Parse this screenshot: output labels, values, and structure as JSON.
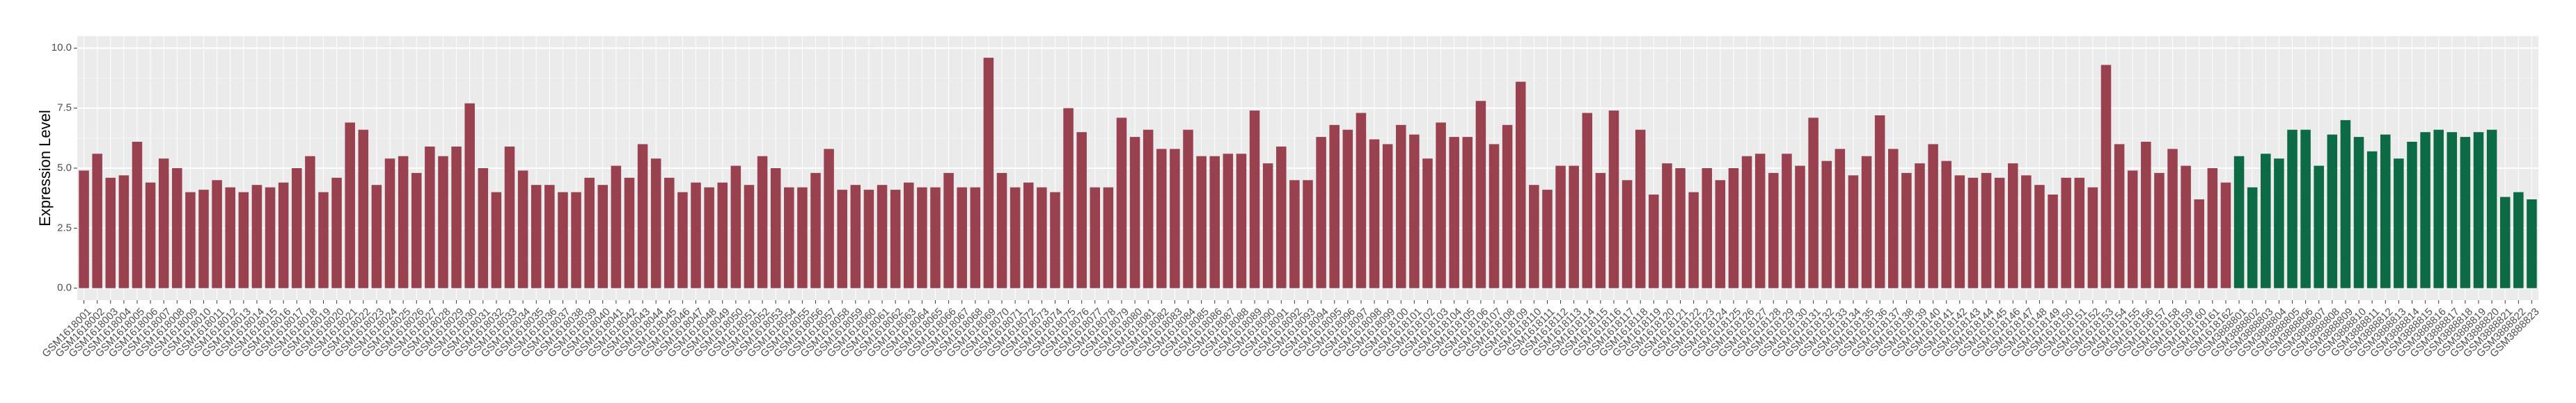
{
  "chart_data": {
    "type": "bar",
    "y_label": "Expression Level",
    "categories": [
      "GSM1618001",
      "GSM1618002",
      "GSM1618003",
      "GSM1618004",
      "GSM1618005",
      "GSM1618006",
      "GSM1618007",
      "GSM1618008",
      "GSM1618009",
      "GSM1618010",
      "GSM1618011",
      "GSM1618012",
      "GSM1618013",
      "GSM1618014",
      "GSM1618015",
      "GSM1618016",
      "GSM1618017",
      "GSM1618018",
      "GSM1618019",
      "GSM1618020",
      "GSM1618021",
      "GSM1618022",
      "GSM1618023",
      "GSM1618024",
      "GSM1618025",
      "GSM1618026",
      "GSM1618027",
      "GSM1618028",
      "GSM1618029",
      "GSM1618030",
      "GSM1618031",
      "GSM1618032",
      "GSM1618033",
      "GSM1618034",
      "GSM1618035",
      "GSM1618036",
      "GSM1618037",
      "GSM1618038",
      "GSM1618039",
      "GSM1618040",
      "GSM1618041",
      "GSM1618042",
      "GSM1618043",
      "GSM1618044",
      "GSM1618045",
      "GSM1618046",
      "GSM1618047",
      "GSM1618048",
      "GSM1618049",
      "GSM1618050",
      "GSM1618051",
      "GSM1618052",
      "GSM1618053",
      "GSM1618054",
      "GSM1618055",
      "GSM1618056",
      "GSM1618057",
      "GSM1618058",
      "GSM1618059",
      "GSM1618060",
      "GSM1618061",
      "GSM1618062",
      "GSM1618063",
      "GSM1618064",
      "GSM1618065",
      "GSM1618066",
      "GSM1618067",
      "GSM1618068",
      "GSM1618069",
      "GSM1618070",
      "GSM1618071",
      "GSM1618072",
      "GSM1618073",
      "GSM1618074",
      "GSM1618075",
      "GSM1618076",
      "GSM1618077",
      "GSM1618078",
      "GSM1618079",
      "GSM1618080",
      "GSM1618081",
      "GSM1618082",
      "GSM1618083",
      "GSM1618084",
      "GSM1618085",
      "GSM1618086",
      "GSM1618087",
      "GSM1618088",
      "GSM1618089",
      "GSM1618090",
      "GSM1618091",
      "GSM1618092",
      "GSM1618093",
      "GSM1618094",
      "GSM1618095",
      "GSM1618096",
      "GSM1618097",
      "GSM1618098",
      "GSM1618099",
      "GSM1618100",
      "GSM1618101",
      "GSM1618102",
      "GSM1618103",
      "GSM1618104",
      "GSM1618105",
      "GSM1618106",
      "GSM1618107",
      "GSM1618108",
      "GSM1618109",
      "GSM1618110",
      "GSM1618111",
      "GSM1618112",
      "GSM1618113",
      "GSM1618114",
      "GSM1618115",
      "GSM1618116",
      "GSM1618117",
      "GSM1618118",
      "GSM1618119",
      "GSM1618120",
      "GSM1618121",
      "GSM1618122",
      "GSM1618123",
      "GSM1618124",
      "GSM1618125",
      "GSM1618126",
      "GSM1618127",
      "GSM1618128",
      "GSM1618129",
      "GSM1618130",
      "GSM1618131",
      "GSM1618132",
      "GSM1618133",
      "GSM1618134",
      "GSM1618135",
      "GSM1618136",
      "GSM1618137",
      "GSM1618138",
      "GSM1618139",
      "GSM1618140",
      "GSM1618141",
      "GSM1618142",
      "GSM1618143",
      "GSM1618144",
      "GSM1618145",
      "GSM1618146",
      "GSM1618147",
      "GSM1618148",
      "GSM1618149",
      "GSM1618150",
      "GSM1618151",
      "GSM1618152",
      "GSM1618153",
      "GSM1618154",
      "GSM1618155",
      "GSM1618156",
      "GSM1618157",
      "GSM1618158",
      "GSM1618159",
      "GSM1618160",
      "GSM1618161",
      "GSM1618162",
      "GSM3888801",
      "GSM3888802",
      "GSM3888803",
      "GSM3888804",
      "GSM3888805",
      "GSM3888806",
      "GSM3888807",
      "GSM3888808",
      "GSM3888809",
      "GSM3888810",
      "GSM3888811",
      "GSM3888812",
      "GSM3888813",
      "GSM3888814",
      "GSM3888815",
      "GSM3888816",
      "GSM3888817",
      "GSM3888818",
      "GSM3888819",
      "GSM3888820",
      "GSM3888821",
      "GSM3888822",
      "GSM3888823"
    ],
    "values": [
      4.9,
      5.6,
      4.6,
      4.7,
      6.1,
      4.4,
      5.4,
      5.0,
      4.0,
      4.1,
      4.5,
      4.2,
      4.0,
      4.3,
      4.2,
      4.4,
      5.0,
      5.5,
      4.0,
      4.6,
      6.9,
      6.6,
      4.3,
      5.4,
      5.5,
      4.8,
      5.9,
      5.5,
      5.9,
      7.7,
      5.0,
      4.0,
      5.9,
      4.9,
      4.3,
      4.3,
      4.0,
      4.0,
      4.6,
      4.3,
      5.1,
      4.6,
      6.0,
      5.4,
      4.6,
      4.0,
      4.4,
      4.2,
      4.4,
      5.1,
      4.3,
      5.5,
      5.0,
      4.2,
      4.2,
      4.8,
      5.8,
      4.1,
      4.3,
      4.1,
      4.3,
      4.1,
      4.4,
      4.2,
      4.2,
      4.8,
      4.2,
      4.2,
      9.6,
      4.8,
      4.2,
      4.4,
      4.2,
      4.0,
      7.5,
      6.5,
      4.2,
      4.2,
      7.1,
      6.3,
      6.6,
      5.8,
      5.8,
      6.6,
      5.5,
      5.5,
      5.6,
      5.6,
      7.4,
      5.2,
      5.9,
      4.5,
      4.5,
      6.3,
      6.8,
      6.6,
      7.3,
      6.2,
      6.0,
      6.8,
      6.4,
      5.4,
      6.9,
      6.3,
      6.3,
      7.8,
      6.0,
      6.8,
      8.6,
      4.3,
      4.1,
      5.1,
      5.1,
      7.3,
      4.8,
      7.4,
      4.5,
      6.6,
      3.9,
      5.2,
      5.0,
      4.0,
      5.0,
      4.5,
      5.0,
      5.5,
      5.6,
      4.8,
      5.6,
      5.1,
      7.1,
      5.3,
      5.8,
      4.7,
      5.5,
      7.2,
      5.8,
      4.8,
      5.2,
      6.0,
      5.3,
      4.7,
      4.6,
      4.8,
      4.6,
      5.2,
      4.7,
      4.3,
      3.9,
      4.6,
      4.6,
      4.2,
      9.3,
      6.0,
      4.9,
      6.1,
      4.8,
      5.8,
      5.1,
      3.7,
      5.0,
      4.4,
      5.5,
      4.2,
      5.6,
      5.4,
      6.6,
      6.6,
      5.1,
      6.4,
      7.0,
      6.3,
      5.7,
      6.4,
      5.4,
      6.1,
      6.5,
      6.6,
      6.5,
      6.3,
      6.5,
      6.6,
      3.8,
      4.0,
      3.7
    ],
    "colors": [
      "#9a4150",
      "#9a4150",
      "#9a4150",
      "#9a4150",
      "#9a4150",
      "#9a4150",
      "#9a4150",
      "#9a4150",
      "#9a4150",
      "#9a4150",
      "#9a4150",
      "#9a4150",
      "#9a4150",
      "#9a4150",
      "#9a4150",
      "#9a4150",
      "#9a4150",
      "#9a4150",
      "#9a4150",
      "#9a4150",
      "#9a4150",
      "#9a4150",
      "#9a4150",
      "#9a4150",
      "#9a4150",
      "#9a4150",
      "#9a4150",
      "#9a4150",
      "#9a4150",
      "#9a4150",
      "#9a4150",
      "#9a4150",
      "#9a4150",
      "#9a4150",
      "#9a4150",
      "#9a4150",
      "#9a4150",
      "#9a4150",
      "#9a4150",
      "#9a4150",
      "#9a4150",
      "#9a4150",
      "#9a4150",
      "#9a4150",
      "#9a4150",
      "#9a4150",
      "#9a4150",
      "#9a4150",
      "#9a4150",
      "#9a4150",
      "#9a4150",
      "#9a4150",
      "#9a4150",
      "#9a4150",
      "#9a4150",
      "#9a4150",
      "#9a4150",
      "#9a4150",
      "#9a4150",
      "#9a4150",
      "#9a4150",
      "#9a4150",
      "#9a4150",
      "#9a4150",
      "#9a4150",
      "#9a4150",
      "#9a4150",
      "#9a4150",
      "#9a4150",
      "#9a4150",
      "#9a4150",
      "#9a4150",
      "#9a4150",
      "#9a4150",
      "#9a4150",
      "#9a4150",
      "#9a4150",
      "#9a4150",
      "#9a4150",
      "#9a4150",
      "#9a4150",
      "#9a4150",
      "#9a4150",
      "#9a4150",
      "#9a4150",
      "#9a4150",
      "#9a4150",
      "#9a4150",
      "#9a4150",
      "#9a4150",
      "#9a4150",
      "#9a4150",
      "#9a4150",
      "#9a4150",
      "#9a4150",
      "#9a4150",
      "#9a4150",
      "#9a4150",
      "#9a4150",
      "#9a4150",
      "#9a4150",
      "#9a4150",
      "#9a4150",
      "#9a4150",
      "#9a4150",
      "#9a4150",
      "#9a4150",
      "#9a4150",
      "#9a4150",
      "#9a4150",
      "#9a4150",
      "#9a4150",
      "#9a4150",
      "#9a4150",
      "#9a4150",
      "#9a4150",
      "#9a4150",
      "#9a4150",
      "#9a4150",
      "#9a4150",
      "#9a4150",
      "#9a4150",
      "#9a4150",
      "#9a4150",
      "#9a4150",
      "#9a4150",
      "#9a4150",
      "#9a4150",
      "#9a4150",
      "#9a4150",
      "#9a4150",
      "#9a4150",
      "#9a4150",
      "#9a4150",
      "#9a4150",
      "#9a4150",
      "#9a4150",
      "#9a4150",
      "#9a4150",
      "#9a4150",
      "#9a4150",
      "#9a4150",
      "#9a4150",
      "#9a4150",
      "#9a4150",
      "#9a4150",
      "#9a4150",
      "#9a4150",
      "#9a4150",
      "#9a4150",
      "#9a4150",
      "#9a4150",
      "#9a4150",
      "#9a4150",
      "#9a4150",
      "#9a4150",
      "#9a4150",
      "#9a4150",
      "#9a4150",
      "#9a4150",
      "#9a4150",
      "#9a4150",
      "#0c6a45",
      "#0c6a45",
      "#0c6a45",
      "#0c6a45",
      "#0c6a45",
      "#0c6a45",
      "#0c6a45",
      "#0c6a45",
      "#0c6a45",
      "#0c6a45",
      "#0c6a45",
      "#0c6a45",
      "#0c6a45",
      "#0c6a45",
      "#0c6a45",
      "#0c6a45",
      "#0c6a45",
      "#0c6a45",
      "#0c6a45",
      "#0c6a45",
      "#0c6a45",
      "#0c6a45",
      "#0c6a45"
    ],
    "ylim": [
      -0.5,
      10.5
    ],
    "yticks": [
      {
        "value": 0,
        "label": "0.0"
      },
      {
        "value": 2.5,
        "label": "2.5"
      },
      {
        "value": 5,
        "label": "5.0"
      },
      {
        "value": 7.5,
        "label": "7.5"
      },
      {
        "value": 10,
        "label": "10.0"
      }
    ],
    "grid": true
  }
}
